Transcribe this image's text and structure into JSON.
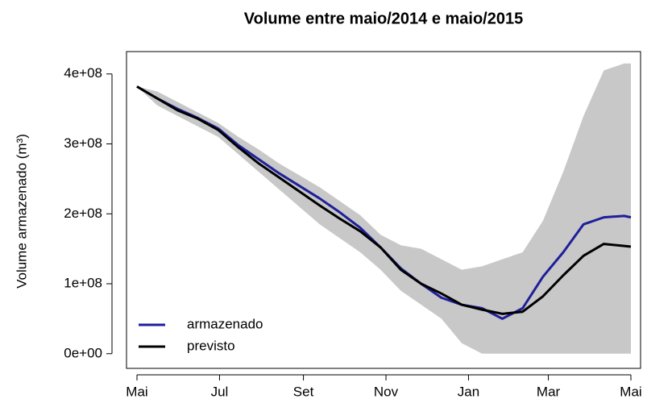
{
  "chart_data": {
    "type": "line",
    "title": "Volume entre  maio/2014  e  maio/2015",
    "y_label": "Volume armazenado (m³)",
    "x": [
      0,
      15,
      30,
      45,
      60,
      75,
      90,
      105,
      120,
      135,
      150,
      165,
      180,
      195,
      210,
      225,
      240,
      255,
      270,
      285,
      300,
      315,
      330,
      345,
      360,
      365
    ],
    "xlim": [
      0,
      365
    ],
    "xticks": [
      {
        "value": 0,
        "label": "Mai"
      },
      {
        "value": 61,
        "label": "Jul"
      },
      {
        "value": 123,
        "label": "Set"
      },
      {
        "value": 184,
        "label": "Nov"
      },
      {
        "value": 245,
        "label": "Jan"
      },
      {
        "value": 304,
        "label": "Mar"
      },
      {
        "value": 365,
        "label": "Mai"
      }
    ],
    "ylim": [
      -21000000,
      432000000
    ],
    "yticks": [
      {
        "value": 0,
        "label": "0e+00"
      },
      {
        "value": 100000000,
        "label": "1e+08"
      },
      {
        "value": 200000000,
        "label": "2e+08"
      },
      {
        "value": 300000000,
        "label": "3e+08"
      },
      {
        "value": 400000000,
        "label": "4e+08"
      }
    ],
    "band": {
      "color": "#c8c8c8",
      "upper": [
        382000000,
        375000000,
        360000000,
        345000000,
        330000000,
        310000000,
        292000000,
        272000000,
        255000000,
        238000000,
        218000000,
        198000000,
        170000000,
        155000000,
        150000000,
        135000000,
        120000000,
        125000000,
        135000000,
        145000000,
        190000000,
        260000000,
        340000000,
        405000000,
        415000000,
        415000000
      ],
      "lower": [
        382000000,
        355000000,
        340000000,
        325000000,
        310000000,
        285000000,
        260000000,
        235000000,
        210000000,
        185000000,
        165000000,
        145000000,
        120000000,
        90000000,
        70000000,
        50000000,
        15000000,
        0,
        0,
        0,
        0,
        0,
        0,
        0,
        0,
        0
      ]
    },
    "series": [
      {
        "name": "armazenado",
        "color": "#1f1f9a",
        "values": [
          382000000,
          365000000,
          350000000,
          337000000,
          322000000,
          298000000,
          278000000,
          258000000,
          240000000,
          222000000,
          202000000,
          180000000,
          152000000,
          122000000,
          100000000,
          80000000,
          70000000,
          65000000,
          50000000,
          65000000,
          110000000,
          145000000,
          185000000,
          195000000,
          197000000,
          195000000
        ]
      },
      {
        "name": "previsto",
        "color": "#000000",
        "values": [
          382000000,
          365000000,
          348000000,
          336000000,
          320000000,
          295000000,
          272000000,
          252000000,
          232000000,
          212000000,
          193000000,
          175000000,
          152000000,
          120000000,
          100000000,
          86000000,
          70000000,
          63000000,
          57000000,
          60000000,
          82000000,
          112000000,
          140000000,
          157000000,
          154000000,
          153000000
        ]
      }
    ],
    "legend": "bottom-left"
  }
}
